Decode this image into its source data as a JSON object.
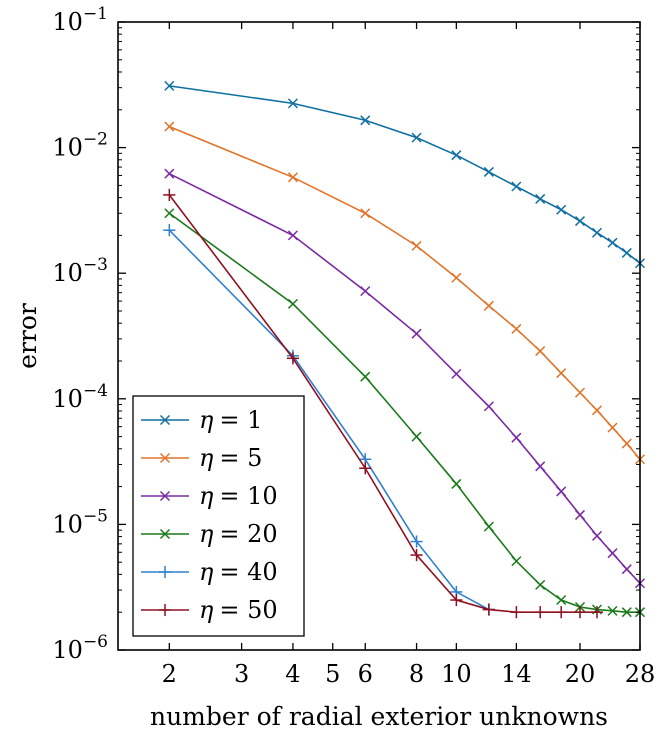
{
  "chart_data": {
    "type": "line",
    "title": "",
    "xlabel": "number of radial exterior unknowns",
    "ylabel": "error",
    "xscale": "log",
    "yscale": "log",
    "xlim": [
      1.5,
      28
    ],
    "ylim": [
      1e-06,
      0.1
    ],
    "grid": false,
    "legend_position": "bottom-left",
    "x_ticks": [
      {
        "value": 2,
        "label": "2"
      },
      {
        "value": 3,
        "label": "3"
      },
      {
        "value": 4,
        "label": "4"
      },
      {
        "value": 5,
        "label": "5"
      },
      {
        "value": 6,
        "label": "6"
      },
      {
        "value": 8,
        "label": "8"
      },
      {
        "value": 10,
        "label": "10"
      },
      {
        "value": 14,
        "label": "14"
      },
      {
        "value": 20,
        "label": "20"
      },
      {
        "value": 28,
        "label": "28"
      }
    ],
    "y_ticks": [
      {
        "value": 1e-06,
        "base": "10",
        "exp": "−6"
      },
      {
        "value": 1e-05,
        "base": "10",
        "exp": "−5"
      },
      {
        "value": 0.0001,
        "base": "10",
        "exp": "−4"
      },
      {
        "value": 0.001,
        "base": "10",
        "exp": "−3"
      },
      {
        "value": 0.01,
        "base": "10",
        "exp": "−2"
      },
      {
        "value": 0.1,
        "base": "10",
        "exp": "−1"
      }
    ],
    "series": [
      {
        "name": "η = 1",
        "sym": "η",
        "eq": "= 1",
        "color": "#0f6fa3",
        "marker": "x",
        "x": [
          2,
          4,
          6,
          8,
          10,
          12,
          14,
          16,
          18,
          20,
          22,
          24,
          26,
          28
        ],
        "y": [
          0.031,
          0.0225,
          0.0165,
          0.012,
          0.0087,
          0.0064,
          0.0049,
          0.0039,
          0.0032,
          0.0026,
          0.0021,
          0.00175,
          0.00145,
          0.0012
        ]
      },
      {
        "name": "η = 5",
        "sym": "η",
        "eq": "= 5",
        "color": "#e0742a",
        "marker": "x",
        "x": [
          2,
          4,
          6,
          8,
          10,
          12,
          14,
          16,
          18,
          20,
          22,
          24,
          26,
          28
        ],
        "y": [
          0.0147,
          0.0058,
          0.003,
          0.00165,
          0.00092,
          0.00055,
          0.00036,
          0.00024,
          0.00016,
          0.000112,
          8.1e-05,
          5.9e-05,
          4.4e-05,
          3.3e-05
        ]
      },
      {
        "name": "η = 10",
        "sym": "η",
        "eq": "= 10",
        "color": "#7a2ba3",
        "marker": "x",
        "x": [
          2,
          4,
          6,
          8,
          10,
          12,
          14,
          16,
          18,
          20,
          22,
          24,
          26,
          28
        ],
        "y": [
          0.0062,
          0.002,
          0.00072,
          0.00033,
          0.000158,
          8.7e-05,
          4.9e-05,
          2.9e-05,
          1.83e-05,
          1.19e-05,
          8.1e-06,
          5.9e-06,
          4.4e-06,
          3.4e-06
        ]
      },
      {
        "name": "η = 20",
        "sym": "η",
        "eq": "= 20",
        "color": "#1a7a1a",
        "marker": "x",
        "x": [
          2,
          4,
          6,
          8,
          10,
          12,
          14,
          16,
          18,
          20,
          22,
          24,
          26,
          28
        ],
        "y": [
          0.003,
          0.00057,
          0.00015,
          5e-05,
          2.1e-05,
          9.6e-06,
          5.1e-06,
          3.3e-06,
          2.5e-06,
          2.2e-06,
          2.1e-06,
          2.05e-06,
          2e-06,
          2e-06
        ]
      },
      {
        "name": "η = 40",
        "sym": "η",
        "eq": "= 40",
        "color": "#2f80d0",
        "marker": "+",
        "x": [
          2,
          4,
          6,
          8,
          10,
          12
        ],
        "y": [
          0.0022,
          0.00022,
          3.3e-05,
          7.3e-06,
          2.9e-06,
          2.1e-06
        ]
      },
      {
        "name": "η = 50",
        "sym": "η",
        "eq": "= 50",
        "color": "#8f1020",
        "marker": "+",
        "x": [
          2,
          4,
          6,
          8,
          10,
          12,
          14,
          16,
          18,
          20,
          22
        ],
        "y": [
          0.0042,
          0.00021,
          2.8e-05,
          5.7e-06,
          2.5e-06,
          2.1e-06,
          2e-06,
          2e-06,
          2e-06,
          2e-06,
          2e-06
        ]
      }
    ]
  }
}
